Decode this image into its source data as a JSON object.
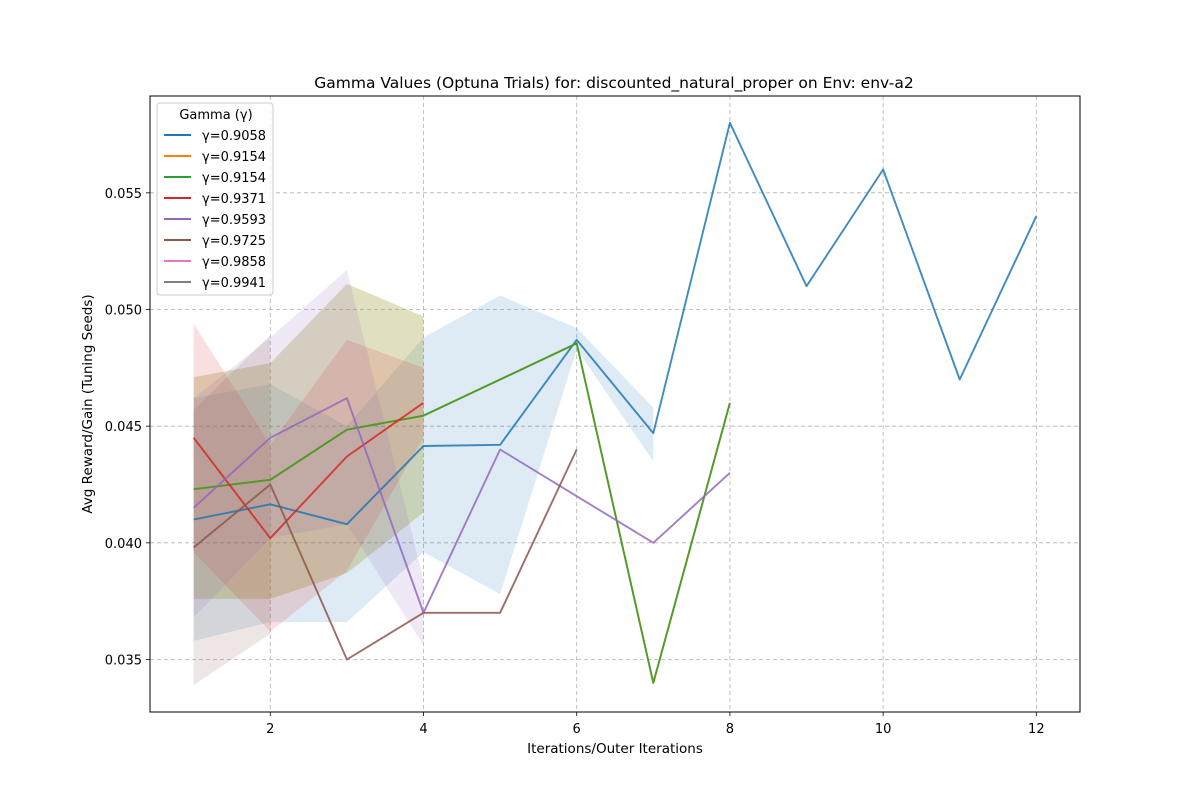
{
  "chart_data": {
    "type": "line",
    "title": "Gamma Values (Optuna Trials) for: discounted_natural_proper on Env: env-a2",
    "xlabel": "Iterations/Outer Iterations",
    "ylabel": "Avg Reward/Gain (Tuning Seeds)",
    "xlim": [
      0.43,
      12.57
    ],
    "ylim": [
      0.03275,
      0.05915
    ],
    "xticks": [
      2,
      4,
      6,
      8,
      10,
      12
    ],
    "xtick_labels": [
      "2",
      "4",
      "6",
      "8",
      "10",
      "12"
    ],
    "yticks": [
      0.035,
      0.04,
      0.045,
      0.05,
      0.055
    ],
    "ytick_labels": [
      "0.035",
      "0.040",
      "0.045",
      "0.050",
      "0.055"
    ],
    "grid": true,
    "legend": {
      "title": "Gamma (γ)",
      "placement": "top-left"
    },
    "series": [
      {
        "name": "γ=0.9058",
        "color": "#1f77b4",
        "x": [
          1,
          2,
          3,
          4,
          5,
          6,
          7,
          8,
          9,
          10,
          11,
          12
        ],
        "y": [
          0.041,
          0.04165,
          0.0408,
          0.04415,
          0.0442,
          0.0487,
          0.0447,
          0.058,
          0.051,
          0.056,
          0.047,
          0.054
        ],
        "lower": [
          0.0358,
          0.0366,
          0.0366,
          0.0396,
          0.0378,
          0.0483,
          0.0435,
          null,
          null,
          null,
          null,
          null
        ],
        "upper": [
          0.0462,
          0.0468,
          0.045,
          0.0488,
          0.0506,
          0.0492,
          0.0458,
          null,
          null,
          null,
          null,
          null
        ]
      },
      {
        "name": "γ=0.9154",
        "color": "#ff7f0e",
        "x": [
          1,
          2,
          3,
          4,
          5,
          6,
          7,
          8
        ],
        "y": [
          0.0423,
          0.0427,
          0.04485,
          0.04545,
          0.047,
          0.04855,
          0.034,
          0.046
        ],
        "lower": [
          0.0376,
          0.0376,
          0.0387,
          0.0413,
          null,
          0.0437,
          null,
          null
        ],
        "upper": [
          0.0471,
          0.0477,
          0.0511,
          0.0497,
          null,
          0.0534,
          null,
          null
        ]
      },
      {
        "name": "γ=0.9154",
        "color": "#2ca02c",
        "x": [
          1,
          2,
          3,
          4,
          5,
          6,
          7,
          8
        ],
        "y": [
          0.0423,
          0.0427,
          0.04485,
          0.04545,
          0.047,
          0.04855,
          0.034,
          0.046
        ],
        "lower": [
          0.0376,
          0.0376,
          0.0387,
          0.0413,
          null,
          0.0437,
          null,
          null
        ],
        "upper": [
          0.0471,
          0.0477,
          0.0511,
          0.0497,
          null,
          0.0534,
          null,
          null
        ]
      },
      {
        "name": "γ=0.9371",
        "color": "#d62728",
        "x": [
          1,
          2,
          3,
          4
        ],
        "y": [
          0.0445,
          0.0402,
          0.0437,
          0.046
        ],
        "lower": [
          0.0396,
          0.0362,
          0.0388,
          0.0445
        ],
        "upper": [
          0.0494,
          0.0442,
          0.0487,
          0.0475
        ]
      },
      {
        "name": "γ=0.9593",
        "color": "#9467bd",
        "x": [
          1,
          2,
          3,
          4,
          5,
          6,
          7,
          8
        ],
        "y": [
          0.0415,
          0.0445,
          0.0462,
          0.037,
          0.044,
          0.042,
          0.04,
          0.043
        ],
        "lower": [
          0.0368,
          0.0402,
          0.0408,
          0.0356,
          null,
          null,
          null,
          null
        ],
        "upper": [
          0.0462,
          0.0488,
          0.0517,
          0.0384,
          null,
          null,
          null,
          null
        ]
      },
      {
        "name": "γ=0.9725",
        "color": "#8c564b",
        "x": [
          1,
          2,
          3,
          4,
          5,
          6
        ],
        "y": [
          0.0398,
          0.0425,
          0.035,
          0.037,
          0.037,
          0.044
        ],
        "lower": [
          0.0339,
          0.0361,
          null,
          null,
          null,
          null
        ],
        "upper": [
          0.0457,
          0.0489,
          null,
          null,
          null,
          null
        ]
      },
      {
        "name": "γ=0.9858",
        "color": "#e377c2",
        "x": [],
        "y": []
      },
      {
        "name": "γ=0.9941",
        "color": "#7f7f7f",
        "x": [],
        "y": []
      }
    ]
  }
}
